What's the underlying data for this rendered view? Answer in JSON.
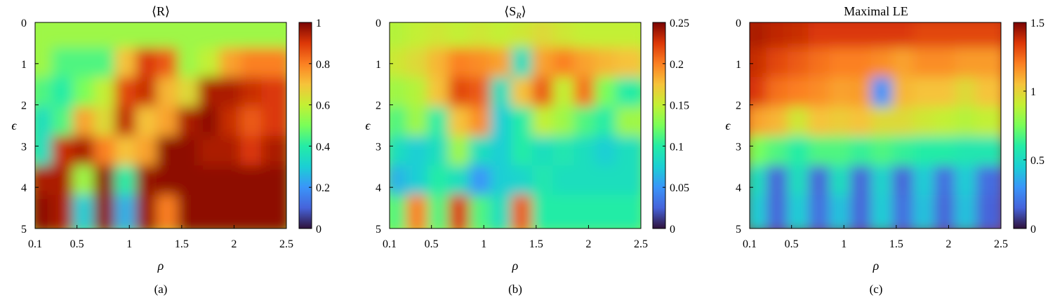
{
  "chart_data": [
    {
      "type": "heatmap",
      "panel_label": "(a)",
      "title": "⟨R⟩",
      "xlabel": "ρ",
      "ylabel": "ϵ",
      "xlim": [
        0.1,
        2.5
      ],
      "ylim": [
        0,
        5
      ],
      "y_inverted": true,
      "x_ticks": [
        "0.1",
        "0.5",
        "1",
        "1.5",
        "2",
        "2.5"
      ],
      "y_ticks": [
        "0",
        "1",
        "2",
        "3",
        "4",
        "5"
      ],
      "colorbar": {
        "range": [
          0,
          1
        ],
        "ticks": [
          "0",
          "0.2",
          "0.4",
          "0.6",
          "0.8",
          "1"
        ],
        "colormap": "turbo"
      },
      "values_normalized": [
        [
          0.55,
          0.55,
          0.55,
          0.55,
          0.55,
          0.55,
          0.55,
          0.55,
          0.55,
          0.55,
          0.55,
          0.55
        ],
        [
          0.55,
          0.45,
          0.45,
          0.45,
          0.7,
          0.9,
          0.85,
          0.55,
          0.6,
          0.75,
          0.8,
          0.8
        ],
        [
          0.45,
          0.4,
          0.5,
          0.6,
          0.88,
          0.92,
          0.72,
          0.65,
          0.95,
          0.95,
          0.92,
          0.9
        ],
        [
          0.35,
          0.45,
          0.75,
          0.65,
          0.93,
          0.7,
          0.75,
          0.95,
          0.98,
          0.92,
          0.85,
          0.9
        ],
        [
          0.35,
          0.92,
          0.95,
          0.8,
          0.7,
          0.75,
          0.98,
          0.98,
          0.95,
          0.95,
          0.9,
          0.95
        ],
        [
          0.95,
          0.95,
          0.55,
          0.98,
          0.4,
          0.97,
          0.98,
          0.98,
          0.98,
          0.98,
          0.98,
          0.98
        ],
        [
          0.98,
          0.95,
          0.3,
          0.98,
          0.25,
          0.97,
          0.8,
          0.98,
          0.98,
          0.98,
          0.98,
          0.98
        ]
      ]
    },
    {
      "type": "heatmap",
      "panel_label": "(b)",
      "title": "⟨S_R⟩",
      "xlabel": "ρ",
      "ylabel": "ϵ",
      "xlim": [
        0.1,
        2.5
      ],
      "ylim": [
        0,
        5
      ],
      "y_inverted": true,
      "x_ticks": [
        "0.1",
        "0.5",
        "1",
        "1.5",
        "2",
        "2.5"
      ],
      "y_ticks": [
        "0",
        "1",
        "2",
        "3",
        "4",
        "5"
      ],
      "colorbar": {
        "range": [
          0,
          0.25
        ],
        "ticks": [
          "0",
          "0.05",
          "0.1",
          "0.15",
          "0.2",
          "0.25"
        ],
        "colormap": "turbo"
      },
      "values_normalized": [
        [
          0.58,
          0.6,
          0.62,
          0.6,
          0.62,
          0.6,
          0.62,
          0.65,
          0.62,
          0.6,
          0.6,
          0.6
        ],
        [
          0.62,
          0.65,
          0.72,
          0.8,
          0.78,
          0.75,
          0.35,
          0.75,
          0.8,
          0.75,
          0.72,
          0.7
        ],
        [
          0.55,
          0.58,
          0.7,
          0.88,
          0.85,
          0.35,
          0.7,
          0.85,
          0.6,
          0.82,
          0.5,
          0.4
        ],
        [
          0.45,
          0.55,
          0.4,
          0.7,
          0.78,
          0.3,
          0.4,
          0.6,
          0.55,
          0.45,
          0.4,
          0.55
        ],
        [
          0.35,
          0.3,
          0.35,
          0.55,
          0.35,
          0.3,
          0.4,
          0.35,
          0.38,
          0.35,
          0.3,
          0.35
        ],
        [
          0.25,
          0.3,
          0.4,
          0.35,
          0.2,
          0.3,
          0.32,
          0.38,
          0.35,
          0.35,
          0.35,
          0.35
        ],
        [
          0.45,
          0.8,
          0.45,
          0.9,
          0.45,
          0.35,
          0.85,
          0.4,
          0.4,
          0.4,
          0.4,
          0.4
        ]
      ]
    },
    {
      "type": "heatmap",
      "panel_label": "(c)",
      "title": "Maximal LE",
      "xlabel": "ρ",
      "ylabel": "ϵ",
      "xlim": [
        0.1,
        2.5
      ],
      "ylim": [
        0,
        5
      ],
      "y_inverted": true,
      "x_ticks": [
        "0.1",
        "0.5",
        "1",
        "1.5",
        "2",
        "2.5"
      ],
      "y_ticks": [
        "0",
        "1",
        "2",
        "3",
        "4",
        "5"
      ],
      "colorbar": {
        "range": [
          0,
          1.5
        ],
        "ticks": [
          "0",
          "0.5",
          "1",
          "1.5"
        ],
        "colormap": "turbo"
      },
      "values_normalized": [
        [
          0.95,
          0.93,
          0.92,
          0.9,
          0.9,
          0.9,
          0.9,
          0.9,
          0.88,
          0.88,
          0.88,
          0.88
        ],
        [
          0.92,
          0.88,
          0.85,
          0.82,
          0.8,
          0.8,
          0.78,
          0.75,
          0.78,
          0.78,
          0.76,
          0.76
        ],
        [
          0.9,
          0.82,
          0.8,
          0.78,
          0.75,
          0.76,
          0.2,
          0.72,
          0.7,
          0.7,
          0.65,
          0.7
        ],
        [
          0.75,
          0.72,
          0.62,
          0.7,
          0.68,
          0.7,
          0.65,
          0.65,
          0.62,
          0.6,
          0.58,
          0.6
        ],
        [
          0.5,
          0.45,
          0.4,
          0.45,
          0.45,
          0.42,
          0.45,
          0.42,
          0.4,
          0.4,
          0.38,
          0.38
        ],
        [
          0.35,
          0.1,
          0.35,
          0.1,
          0.35,
          0.1,
          0.32,
          0.1,
          0.3,
          0.12,
          0.3,
          0.12
        ],
        [
          0.3,
          0.1,
          0.3,
          0.12,
          0.28,
          0.1,
          0.3,
          0.12,
          0.28,
          0.1,
          0.28,
          0.1
        ]
      ]
    }
  ]
}
